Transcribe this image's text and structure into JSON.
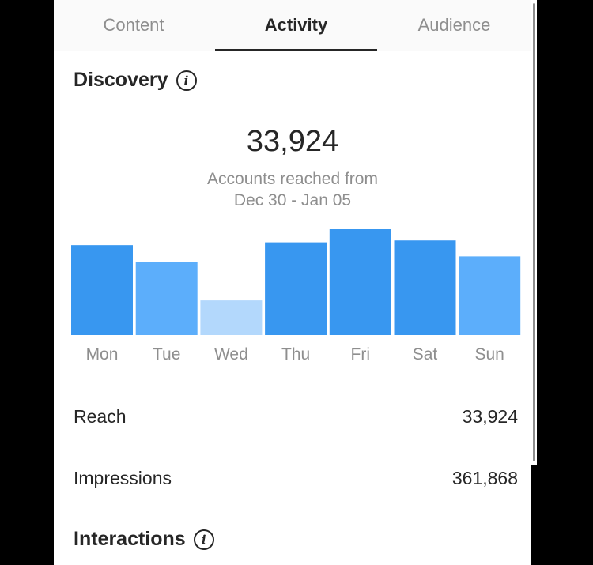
{
  "tabs": [
    {
      "label": "Content"
    },
    {
      "label": "Activity",
      "active": true
    },
    {
      "label": "Audience"
    }
  ],
  "discovery": {
    "title": "Discovery",
    "info_icon": "info-icon",
    "accounts_reached": "33,924",
    "caption_line1": "Accounts reached from",
    "caption_line2": "Dec 30 - Jan 05"
  },
  "chart_data": {
    "type": "bar",
    "categories": [
      "Mon",
      "Tue",
      "Wed",
      "Thu",
      "Fri",
      "Sat",
      "Sun"
    ],
    "values": [
      96,
      78,
      37,
      99,
      113,
      101,
      84
    ],
    "bar_colors": [
      "#3897f0",
      "#5caefb",
      "#b3d8fc",
      "#3897f0",
      "#3897f0",
      "#3897f0",
      "#5caefb"
    ],
    "ylim": [
      0,
      120
    ],
    "title": "",
    "xlabel": "",
    "ylabel": ""
  },
  "metrics": [
    {
      "label": "Reach",
      "value": "33,924"
    },
    {
      "label": "Impressions",
      "value": "361,868"
    }
  ],
  "interactions": {
    "title": "Interactions",
    "info_icon": "info-icon"
  },
  "colors": {
    "text_primary": "#262626",
    "text_secondary": "#8e8e8e",
    "accent": "#3897f0"
  }
}
